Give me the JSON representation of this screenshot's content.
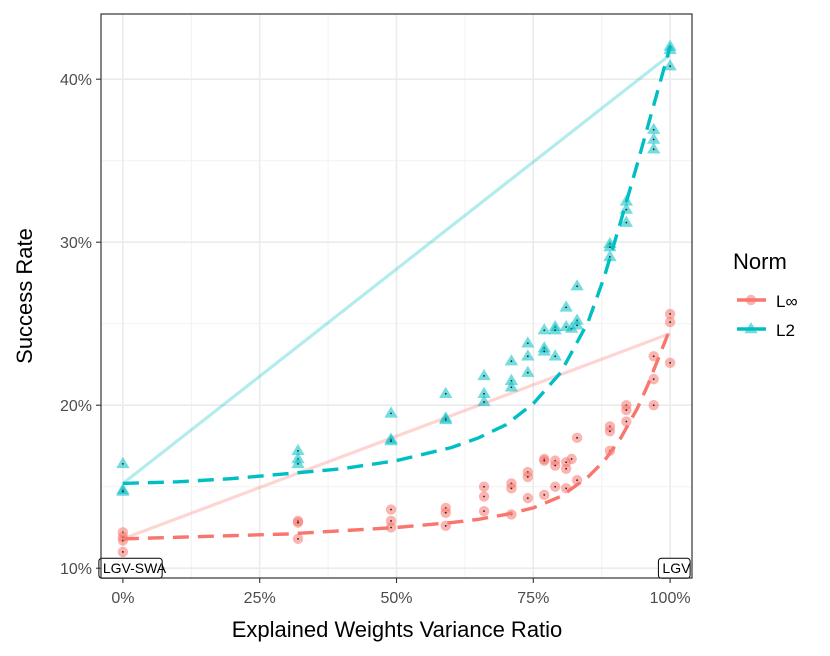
{
  "chart_data": {
    "type": "scatter",
    "title": "",
    "xlabel": "Explained Weights Variance Ratio",
    "ylabel": "Success Rate",
    "xlim": [
      -0.04,
      1.04
    ],
    "ylim": [
      0.094,
      0.44
    ],
    "x_ticks": [
      0,
      0.25,
      0.5,
      0.75,
      1.0
    ],
    "x_tick_labels": [
      "0%",
      "25%",
      "50%",
      "75%",
      "100%"
    ],
    "y_ticks": [
      0.1,
      0.2,
      0.3,
      0.4
    ],
    "y_tick_labels": [
      "10%",
      "20%",
      "30%",
      "40%"
    ],
    "grid": true,
    "legend": {
      "title": "Norm",
      "position": "right",
      "entries": [
        "L∞",
        "L2"
      ]
    },
    "annotations": [
      {
        "text": "LGV-SWA",
        "x": 0.0,
        "y": 0.1
      },
      {
        "text": "LGV",
        "x": 1.0,
        "y": 0.1
      }
    ],
    "series": [
      {
        "name": "L∞",
        "color": "#F8766D",
        "marker": "circle",
        "points": [
          [
            0.0,
            0.122
          ],
          [
            0.0,
            0.119
          ],
          [
            0.0,
            0.117
          ],
          [
            0.0,
            0.11
          ],
          [
            0.32,
            0.129
          ],
          [
            0.32,
            0.128
          ],
          [
            0.32,
            0.118
          ],
          [
            0.49,
            0.136
          ],
          [
            0.49,
            0.129
          ],
          [
            0.49,
            0.125
          ],
          [
            0.59,
            0.137
          ],
          [
            0.59,
            0.134
          ],
          [
            0.59,
            0.126
          ],
          [
            0.66,
            0.15
          ],
          [
            0.66,
            0.144
          ],
          [
            0.66,
            0.135
          ],
          [
            0.71,
            0.152
          ],
          [
            0.71,
            0.149
          ],
          [
            0.71,
            0.133
          ],
          [
            0.74,
            0.159
          ],
          [
            0.74,
            0.156
          ],
          [
            0.74,
            0.143
          ],
          [
            0.77,
            0.167
          ],
          [
            0.77,
            0.166
          ],
          [
            0.77,
            0.145
          ],
          [
            0.79,
            0.166
          ],
          [
            0.79,
            0.163
          ],
          [
            0.79,
            0.15
          ],
          [
            0.81,
            0.165
          ],
          [
            0.81,
            0.161
          ],
          [
            0.81,
            0.149
          ],
          [
            0.82,
            0.167
          ],
          [
            0.83,
            0.18
          ],
          [
            0.83,
            0.154
          ],
          [
            0.89,
            0.187
          ],
          [
            0.89,
            0.184
          ],
          [
            0.89,
            0.172
          ],
          [
            0.92,
            0.2
          ],
          [
            0.92,
            0.197
          ],
          [
            0.92,
            0.19
          ],
          [
            0.97,
            0.23
          ],
          [
            0.97,
            0.216
          ],
          [
            0.97,
            0.2
          ],
          [
            1.0,
            0.256
          ],
          [
            1.0,
            0.251
          ],
          [
            1.0,
            0.226
          ]
        ],
        "trend": {
          "x": [
            0.0,
            1.0
          ],
          "y": [
            0.118,
            0.244
          ]
        },
        "fit": {
          "x": [
            0.0,
            0.1,
            0.2,
            0.3,
            0.4,
            0.5,
            0.6,
            0.65,
            0.7,
            0.75,
            0.8,
            0.85,
            0.88,
            0.91,
            0.94,
            0.96,
            0.98,
            1.0
          ],
          "y": [
            0.118,
            0.119,
            0.12,
            0.121,
            0.123,
            0.125,
            0.128,
            0.13,
            0.133,
            0.137,
            0.144,
            0.156,
            0.166,
            0.18,
            0.198,
            0.213,
            0.23,
            0.247
          ]
        }
      },
      {
        "name": "L2",
        "color": "#00BFC4",
        "marker": "triangle",
        "points": [
          [
            0.0,
            0.164
          ],
          [
            0.0,
            0.148
          ],
          [
            0.0,
            0.147
          ],
          [
            0.32,
            0.172
          ],
          [
            0.32,
            0.167
          ],
          [
            0.32,
            0.164
          ],
          [
            0.49,
            0.195
          ],
          [
            0.49,
            0.179
          ],
          [
            0.49,
            0.178
          ],
          [
            0.59,
            0.207
          ],
          [
            0.59,
            0.192
          ],
          [
            0.59,
            0.191
          ],
          [
            0.66,
            0.218
          ],
          [
            0.66,
            0.207
          ],
          [
            0.66,
            0.202
          ],
          [
            0.71,
            0.227
          ],
          [
            0.71,
            0.215
          ],
          [
            0.71,
            0.211
          ],
          [
            0.74,
            0.238
          ],
          [
            0.74,
            0.23
          ],
          [
            0.74,
            0.22
          ],
          [
            0.77,
            0.246
          ],
          [
            0.77,
            0.235
          ],
          [
            0.77,
            0.233
          ],
          [
            0.79,
            0.248
          ],
          [
            0.79,
            0.246
          ],
          [
            0.79,
            0.23
          ],
          [
            0.81,
            0.26
          ],
          [
            0.81,
            0.248
          ],
          [
            0.82,
            0.247
          ],
          [
            0.83,
            0.273
          ],
          [
            0.83,
            0.252
          ],
          [
            0.83,
            0.249
          ],
          [
            0.89,
            0.299
          ],
          [
            0.89,
            0.297
          ],
          [
            0.89,
            0.291
          ],
          [
            0.92,
            0.325
          ],
          [
            0.92,
            0.32
          ],
          [
            0.92,
            0.312
          ],
          [
            0.97,
            0.369
          ],
          [
            0.97,
            0.363
          ],
          [
            0.97,
            0.357
          ],
          [
            1.0,
            0.42
          ],
          [
            1.0,
            0.418
          ],
          [
            1.0,
            0.408
          ]
        ],
        "trend": {
          "x": [
            0.0,
            1.0
          ],
          "y": [
            0.152,
            0.415
          ]
        },
        "fit": {
          "x": [
            0.0,
            0.1,
            0.2,
            0.3,
            0.4,
            0.5,
            0.6,
            0.65,
            0.7,
            0.75,
            0.8,
            0.85,
            0.88,
            0.91,
            0.94,
            0.96,
            0.98,
            1.0
          ],
          "y": [
            0.152,
            0.153,
            0.155,
            0.158,
            0.161,
            0.166,
            0.174,
            0.18,
            0.188,
            0.201,
            0.22,
            0.251,
            0.279,
            0.313,
            0.348,
            0.372,
            0.396,
            0.42
          ]
        }
      }
    ]
  }
}
